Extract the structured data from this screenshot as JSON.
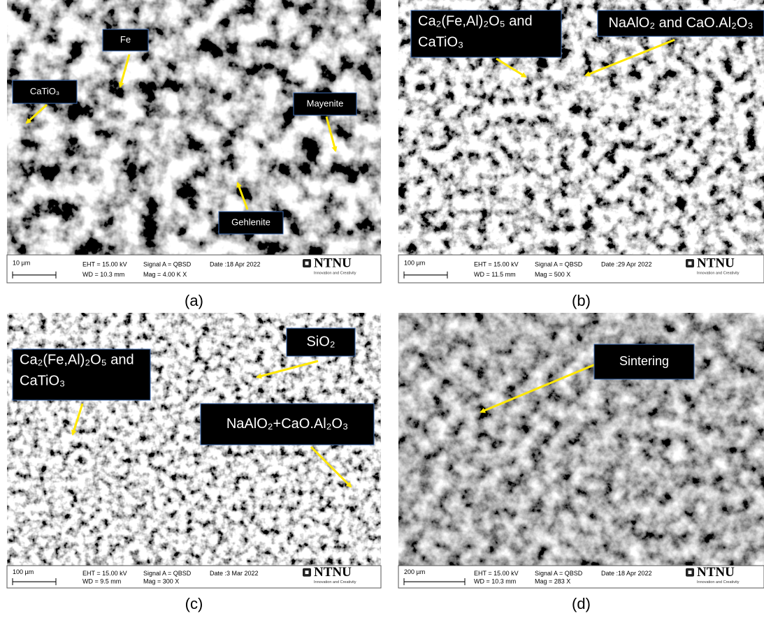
{
  "panels": [
    {
      "caption": "(a)",
      "annotations": [
        [
          "Fe"
        ],
        [
          "CaTiO₃"
        ],
        [
          "Mayenite"
        ],
        [
          "Gehlenite"
        ]
      ],
      "info_bar": {
        "scale": "10 µm",
        "eht": "EHT = 15.00 kV",
        "wd": "WD = 10.3 mm",
        "signal": "Signal A = QBSD",
        "mag": "Mag =   4.00 K X",
        "date": "Date :18 Apr 2022",
        "logo": "NTNU",
        "tagline": "Innovation and Creativity"
      }
    },
    {
      "caption": "(b)",
      "annotations": [
        [
          "Ca₂(Fe,Al)₂O₅ and",
          "CaTiO₃"
        ],
        [
          "NaAlO₂ and CaO.Al₂O₃"
        ]
      ],
      "info_bar": {
        "scale": "100 µm",
        "eht": "EHT = 15.00 kV",
        "wd": "WD = 11.5 mm",
        "signal": "Signal A = QBSD",
        "mag": "Mag =    500 X",
        "date": "Date :29 Apr 2022",
        "logo": "NTNU",
        "tagline": "Innovation and Creativity"
      }
    },
    {
      "caption": "(c)",
      "annotations": [
        [
          "SiO₂"
        ],
        [
          "Ca₂(Fe,Al)₂O₅ and",
          "CaTiO₃"
        ],
        [
          "NaAlO₂+CaO.Al₂O₃"
        ]
      ],
      "info_bar": {
        "scale": "100 µm",
        "eht": "EHT = 15.00 kV",
        "wd": "WD = 9.5 mm",
        "signal": "Signal A = QBSD",
        "mag": "Mag =    300 X",
        "date": "Date :3 Mar 2022",
        "logo": "NTNU",
        "tagline": "Innovation and Creativity"
      }
    },
    {
      "caption": "(d)",
      "annotations": [
        [
          "Sintering"
        ]
      ],
      "info_bar": {
        "scale": "200 µm",
        "eht": "EHT = 15.00 kV",
        "wd": "WD = 10.3 mm",
        "signal": "Signal A = QBSD",
        "mag": "Mag =    283 X",
        "date": "Date :18 Apr 2022",
        "logo": "NTNU",
        "tagline": "Innovation and Creativity"
      }
    }
  ]
}
